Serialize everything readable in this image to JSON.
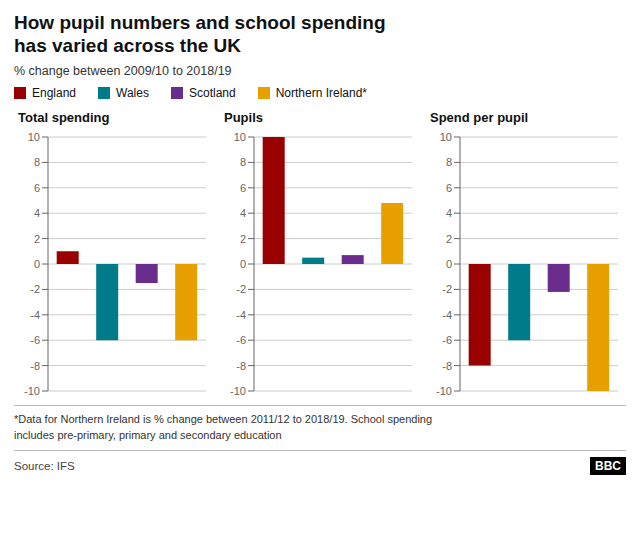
{
  "title": "How pupil numbers and school spending\nhas varied across the UK",
  "subtitle": "% change between 2009/10 to 2018/19",
  "legend": "top",
  "footnote": "*Data for Northern Ireland is % change between 2011/12 to 2018/19. School spending\nincludes pre-primary, primary and secondary education",
  "source": "Source: IFS",
  "credit": "BBC",
  "chart_data": [
    {
      "type": "bar",
      "title": "Total spending",
      "categories": [
        "England",
        "Wales",
        "Scotland",
        "Northern Ireland*"
      ],
      "values": [
        1.0,
        -6.0,
        -1.5,
        -6.0
      ],
      "colors": [
        "#990000",
        "#007b8a",
        "#6b2d8b",
        "#e8a000"
      ],
      "ylim": [
        -10,
        10
      ],
      "yticks": [
        -10,
        -8,
        -6,
        -4,
        -2,
        0,
        2,
        4,
        6,
        8,
        10
      ],
      "grid": true,
      "tick_labels": "y"
    },
    {
      "type": "bar",
      "title": "Pupils",
      "categories": [
        "England",
        "Wales",
        "Scotland",
        "Northern Ireland*"
      ],
      "values": [
        10.0,
        0.5,
        0.7,
        4.8
      ],
      "colors": [
        "#990000",
        "#007b8a",
        "#6b2d8b",
        "#e8a000"
      ],
      "ylim": [
        -10,
        10
      ],
      "yticks": [
        -10,
        -8,
        -6,
        -4,
        -2,
        0,
        2,
        4,
        6,
        8,
        10
      ],
      "grid": true,
      "tick_labels": "y"
    },
    {
      "type": "bar",
      "title": "Spend per pupil",
      "categories": [
        "England",
        "Wales",
        "Scotland",
        "Northern Ireland*"
      ],
      "values": [
        -8.0,
        -6.0,
        -2.2,
        -10.0
      ],
      "colors": [
        "#990000",
        "#007b8a",
        "#6b2d8b",
        "#e8a000"
      ],
      "ylim": [
        -10,
        10
      ],
      "yticks": [
        -10,
        -8,
        -6,
        -4,
        -2,
        0,
        2,
        4,
        6,
        8,
        10
      ],
      "grid": true,
      "tick_labels": "y"
    }
  ]
}
